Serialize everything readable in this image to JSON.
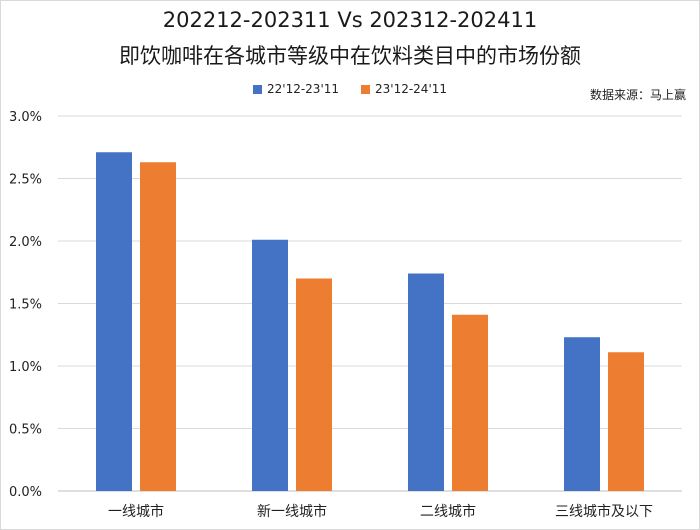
{
  "title": "202212-202311 Vs 202312-202411",
  "subtitle": "即饮咖啡在各城市等级中在饮料类目中的市场份额",
  "source_note": "数据来源：马上赢",
  "colors": {
    "series1": "#4472C4",
    "series2": "#ED7D31",
    "grid": "#d9d9d9",
    "axis": "#bfbfbf"
  },
  "chart_data": {
    "type": "bar",
    "categories": [
      "一线城市",
      "新一线城市",
      "二线城市",
      "三线城市及以下"
    ],
    "series": [
      {
        "name": "22'12-23'11",
        "values": [
          2.71,
          2.01,
          1.74,
          1.23
        ]
      },
      {
        "name": "23'12-24'11",
        "values": [
          2.63,
          1.7,
          1.41,
          1.11
        ]
      }
    ],
    "yticks": [
      "0.0%",
      "0.5%",
      "1.0%",
      "1.5%",
      "2.0%",
      "2.5%",
      "3.0%"
    ],
    "ylim": [
      0,
      3.0
    ],
    "grid": true,
    "legend_position": "top-center"
  }
}
